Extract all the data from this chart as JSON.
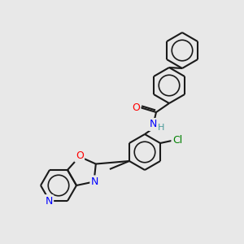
{
  "bg_color": "#e8e8e8",
  "bond_color": "#1a1a1a",
  "atom_colors": {
    "O": "#ff0000",
    "N": "#0000ff",
    "Cl": "#008000",
    "H": "#4a9a9a",
    "C": "#1a1a1a"
  },
  "lw": 1.5,
  "dbl_sep": 2.2,
  "ring_r": 22,
  "font_size": 9
}
